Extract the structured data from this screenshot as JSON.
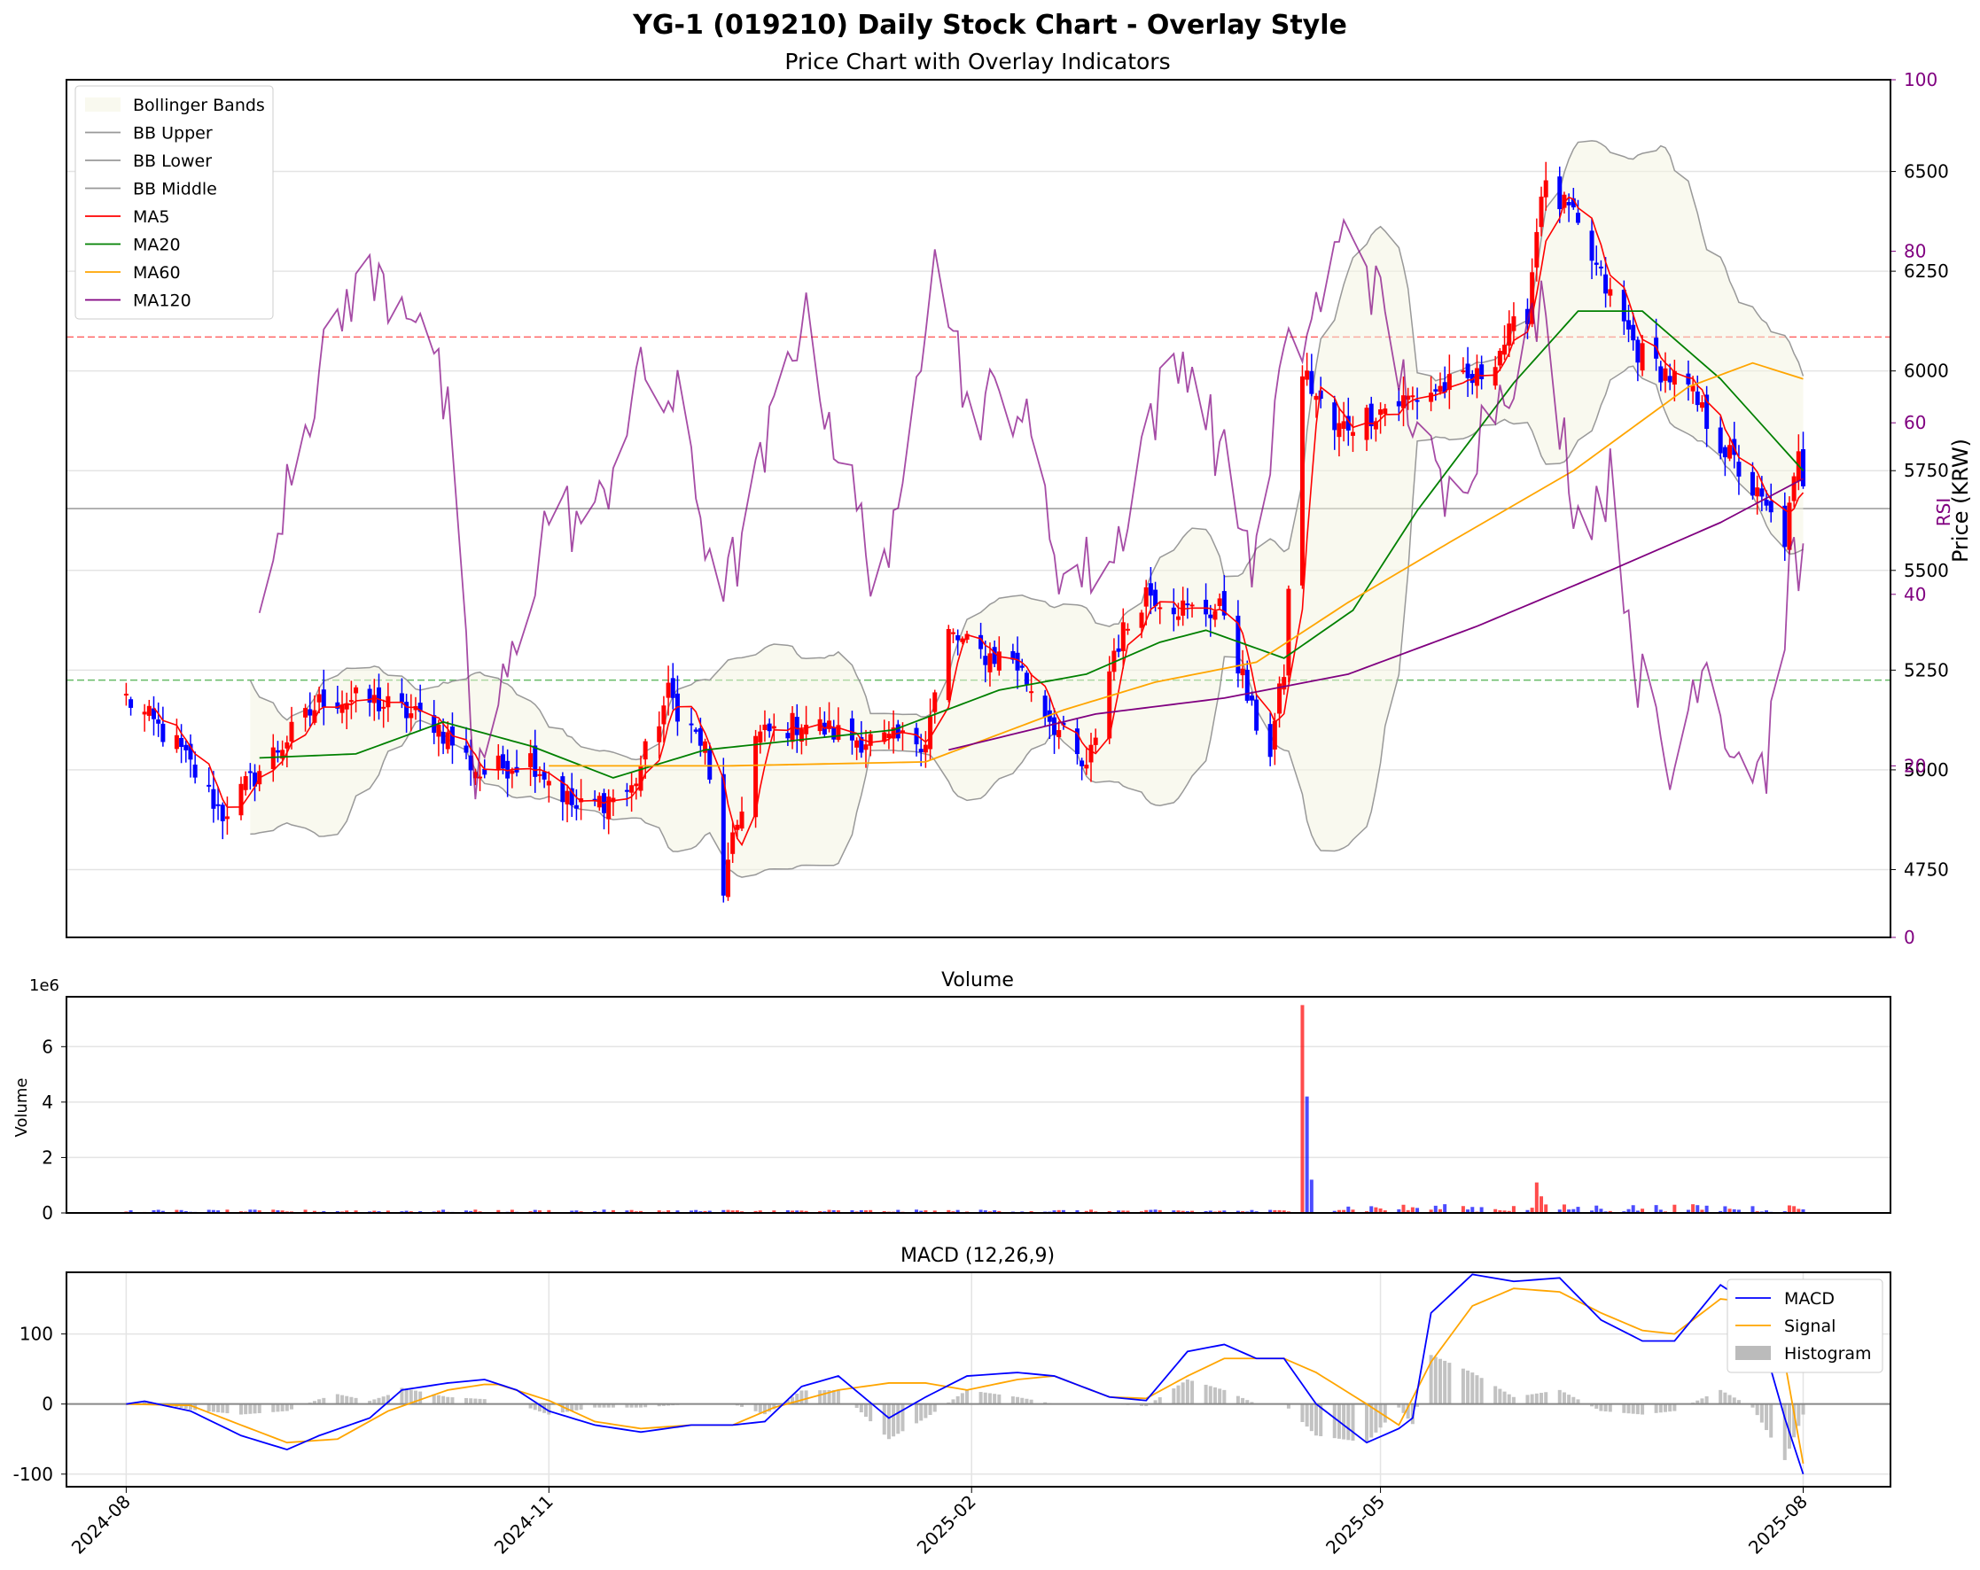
{
  "figure": {
    "title": "YG-1 (019210) Daily Stock Chart - Overlay Style",
    "subtitle": "Price Chart with Overlay Indicators"
  },
  "colors": {
    "up": "#ff0000",
    "down": "#0000ff",
    "ma5": "#ff0000",
    "ma20": "#008000",
    "ma60": "#ffa500",
    "ma120": "#800080",
    "bb": "#999999",
    "rsi": "#800080",
    "macd": "#0000ff",
    "signal": "#ffa500",
    "hist": "#bbbbbb",
    "rsi_overbought_line": "#ff6666",
    "rsi_oversold_line": "#66bb66"
  },
  "chart_data": [
    {
      "panel": "price",
      "type": "candlestick",
      "ylabel": "Price (KRW)",
      "ylim": [
        4580,
        6730
      ],
      "yticks": [
        4750,
        5000,
        5250,
        5500,
        5750,
        6000,
        6250,
        6500
      ],
      "xlim": [
        "2024-07-19",
        "2025-08-20"
      ],
      "legend": [
        "Bollinger Bands",
        "BB Upper",
        "BB Lower",
        "BB Middle",
        "MA5",
        "MA20",
        "MA60",
        "MA120"
      ],
      "legend_position": "top-left",
      "secondary_axis": {
        "label": "RSI",
        "ylim": [
          0,
          100
        ],
        "yticks": [
          0,
          20,
          40,
          60,
          80,
          100
        ],
        "ref_lines": [
          70,
          30,
          50
        ]
      },
      "anchors": [
        [
          "2024-08-01",
          5180
        ],
        [
          "2024-08-12",
          5060
        ],
        [
          "2024-08-22",
          4890
        ],
        [
          "2024-09-02",
          5040
        ],
        [
          "2024-09-13",
          5180
        ],
        [
          "2024-09-24",
          5170
        ],
        [
          "2024-10-07",
          5120
        ],
        [
          "2024-10-17",
          4990
        ],
        [
          "2024-10-28",
          5030
        ],
        [
          "2024-11-07",
          4900
        ],
        [
          "2024-11-19",
          4950
        ],
        [
          "2024-11-27",
          5190
        ],
        [
          "2024-12-05",
          5050
        ],
        [
          "2024-12-09",
          4700
        ],
        [
          "2024-12-16",
          5080
        ],
        [
          "2024-12-26",
          5120
        ],
        [
          "2025-01-06",
          5080
        ],
        [
          "2025-01-14",
          5070
        ],
        [
          "2025-01-22",
          5080
        ],
        [
          "2025-01-27",
          5340
        ],
        [
          "2025-02-03",
          5290
        ],
        [
          "2025-02-10",
          5280
        ],
        [
          "2025-02-17",
          5150
        ],
        [
          "2025-02-26",
          4990
        ],
        [
          "2025-03-04",
          5300
        ],
        [
          "2025-03-11",
          5450
        ],
        [
          "2025-03-20",
          5400
        ],
        [
          "2025-03-28",
          5400
        ],
        [
          "2025-04-03",
          5140
        ],
        [
          "2025-04-07",
          5050
        ],
        [
          "2025-04-10",
          5250
        ],
        [
          "2025-04-14",
          6000
        ],
        [
          "2025-04-21",
          5850
        ],
        [
          "2025-04-30",
          5900
        ],
        [
          "2025-05-12",
          5950
        ],
        [
          "2025-05-22",
          5980
        ],
        [
          "2025-06-02",
          6150
        ],
        [
          "2025-06-05",
          6460
        ],
        [
          "2025-06-11",
          6400
        ],
        [
          "2025-06-18",
          6230
        ],
        [
          "2025-06-26",
          6050
        ],
        [
          "2025-07-07",
          5950
        ],
        [
          "2025-07-14",
          5820
        ],
        [
          "2025-07-21",
          5700
        ],
        [
          "2025-07-28",
          5580
        ],
        [
          "2025-07-31",
          5780
        ],
        [
          "2025-08-01",
          5730
        ]
      ],
      "moving_average_anchors": {
        "MA20": [
          [
            "2024-08-30",
            5030
          ],
          [
            "2024-09-20",
            5040
          ],
          [
            "2024-10-09",
            5120
          ],
          [
            "2024-10-28",
            5060
          ],
          [
            "2024-11-15",
            4980
          ],
          [
            "2024-12-05",
            5050
          ],
          [
            "2025-01-15",
            5100
          ],
          [
            "2025-02-07",
            5200
          ],
          [
            "2025-02-26",
            5240
          ],
          [
            "2025-03-14",
            5320
          ],
          [
            "2025-03-24",
            5350
          ],
          [
            "2025-04-10",
            5280
          ],
          [
            "2025-04-25",
            5400
          ],
          [
            "2025-05-09",
            5650
          ],
          [
            "2025-05-30",
            5970
          ],
          [
            "2025-06-13",
            6150
          ],
          [
            "2025-06-27",
            6150
          ],
          [
            "2025-07-14",
            5980
          ],
          [
            "2025-08-01",
            5750
          ]
        ],
        "MA60": [
          [
            "2024-11-01",
            5010
          ],
          [
            "2024-12-10",
            5010
          ],
          [
            "2025-01-22",
            5020
          ],
          [
            "2025-02-21",
            5150
          ],
          [
            "2025-03-13",
            5220
          ],
          [
            "2025-04-04",
            5270
          ],
          [
            "2025-04-24",
            5420
          ],
          [
            "2025-05-16",
            5570
          ],
          [
            "2025-06-12",
            5750
          ],
          [
            "2025-07-07",
            5960
          ],
          [
            "2025-07-21",
            6020
          ],
          [
            "2025-08-01",
            5980
          ]
        ],
        "MA120": [
          [
            "2025-01-27",
            5050
          ],
          [
            "2025-02-28",
            5140
          ],
          [
            "2025-03-28",
            5180
          ],
          [
            "2025-04-24",
            5240
          ],
          [
            "2025-05-22",
            5360
          ],
          [
            "2025-06-20",
            5500
          ],
          [
            "2025-07-14",
            5620
          ],
          [
            "2025-08-01",
            5730
          ]
        ]
      },
      "rsi_anchors": [
        [
          "2024-08-30",
          34
        ],
        [
          "2024-09-05",
          55
        ],
        [
          "2024-09-20",
          77
        ],
        [
          "2024-10-04",
          74
        ],
        [
          "2024-10-10",
          60
        ],
        [
          "2024-10-16",
          18
        ],
        [
          "2024-10-24",
          32
        ],
        [
          "2024-11-01",
          50
        ],
        [
          "2024-11-11",
          48
        ],
        [
          "2024-11-20",
          65
        ],
        [
          "2024-11-29",
          62
        ],
        [
          "2024-12-05",
          47
        ],
        [
          "2024-12-10",
          41
        ],
        [
          "2024-12-17",
          54
        ],
        [
          "2024-12-26",
          73
        ],
        [
          "2025-01-03",
          57
        ],
        [
          "2025-01-10",
          44
        ],
        [
          "2025-01-16",
          46
        ],
        [
          "2025-01-24",
          84
        ],
        [
          "2025-01-31",
          62
        ],
        [
          "2025-02-11",
          63
        ],
        [
          "2025-02-21",
          42
        ],
        [
          "2025-03-04",
          44
        ],
        [
          "2025-03-11",
          60
        ],
        [
          "2025-03-20",
          68
        ],
        [
          "2025-03-28",
          55
        ],
        [
          "2025-04-04",
          43
        ],
        [
          "2025-04-09",
          65
        ],
        [
          "2025-04-16",
          72
        ],
        [
          "2025-04-25",
          84
        ],
        [
          "2025-05-05",
          66
        ],
        [
          "2025-05-15",
          50
        ],
        [
          "2025-05-26",
          63
        ],
        [
          "2025-06-05",
          73
        ],
        [
          "2025-06-13",
          49
        ],
        [
          "2025-06-20",
          53
        ],
        [
          "2025-06-26",
          31
        ],
        [
          "2025-07-03",
          18
        ],
        [
          "2025-07-10",
          34
        ],
        [
          "2025-07-17",
          22
        ],
        [
          "2025-07-24",
          20
        ],
        [
          "2025-07-29",
          42
        ],
        [
          "2025-08-01",
          43
        ]
      ]
    },
    {
      "panel": "volume",
      "type": "bar",
      "title": "Volume",
      "ylabel": "Volume",
      "offset_label": "1e6",
      "ylim": [
        0,
        7.8
      ],
      "yticks": [
        0,
        2,
        4,
        6
      ],
      "spikes": [
        {
          "date": "2025-04-14",
          "value": 7.5,
          "direction": "up"
        },
        {
          "date": "2025-04-15",
          "value": 4.2,
          "direction": "down"
        },
        {
          "date": "2025-04-16",
          "value": 1.2,
          "direction": "down"
        },
        {
          "date": "2025-06-04",
          "value": 1.1,
          "direction": "up"
        },
        {
          "date": "2025-06-05",
          "value": 0.6,
          "direction": "up"
        }
      ],
      "baseline_range": [
        0.02,
        0.35
      ]
    },
    {
      "panel": "macd",
      "type": "line",
      "title": "MACD (12,26,9)",
      "ylim": [
        -118,
        188
      ],
      "yticks": [
        -100,
        0,
        100
      ],
      "xticks": [
        "2024-08",
        "2024-11",
        "2025-02",
        "2025-05",
        "2025-08"
      ],
      "grid": true,
      "legend_position": "top-right",
      "series": [
        {
          "name": "MACD",
          "anchors": [
            [
              "2024-08-01",
              0
            ],
            [
              "2024-08-05",
              4
            ],
            [
              "2024-08-15",
              -10
            ],
            [
              "2024-08-26",
              -45
            ],
            [
              "2024-09-05",
              -65
            ],
            [
              "2024-09-12",
              -45
            ],
            [
              "2024-09-23",
              -20
            ],
            [
              "2024-09-30",
              20
            ],
            [
              "2024-10-10",
              30
            ],
            [
              "2024-10-18",
              35
            ],
            [
              "2024-10-25",
              20
            ],
            [
              "2024-11-01",
              -10
            ],
            [
              "2024-11-11",
              -30
            ],
            [
              "2024-11-21",
              -40
            ],
            [
              "2024-12-02",
              -30
            ],
            [
              "2024-12-11",
              -30
            ],
            [
              "2024-12-18",
              -25
            ],
            [
              "2024-12-26",
              25
            ],
            [
              "2025-01-03",
              40
            ],
            [
              "2025-01-14",
              -20
            ],
            [
              "2025-01-22",
              10
            ],
            [
              "2025-01-31",
              40
            ],
            [
              "2025-02-11",
              45
            ],
            [
              "2025-02-19",
              40
            ],
            [
              "2025-03-03",
              10
            ],
            [
              "2025-03-11",
              5
            ],
            [
              "2025-03-20",
              75
            ],
            [
              "2025-03-28",
              85
            ],
            [
              "2025-04-04",
              65
            ],
            [
              "2025-04-10",
              65
            ],
            [
              "2025-04-17",
              0
            ],
            [
              "2025-04-28",
              -55
            ],
            [
              "2025-05-05",
              -35
            ],
            [
              "2025-05-08",
              -20
            ],
            [
              "2025-05-12",
              130
            ],
            [
              "2025-05-21",
              185
            ],
            [
              "2025-05-30",
              175
            ],
            [
              "2025-06-09",
              180
            ],
            [
              "2025-06-18",
              120
            ],
            [
              "2025-06-27",
              90
            ],
            [
              "2025-07-04",
              90
            ],
            [
              "2025-07-14",
              170
            ],
            [
              "2025-07-21",
              140
            ],
            [
              "2025-07-28",
              -20
            ],
            [
              "2025-08-01",
              -100
            ]
          ]
        },
        {
          "name": "Signal",
          "anchors": [
            [
              "2024-08-01",
              0
            ],
            [
              "2024-08-15",
              -2
            ],
            [
              "2024-08-26",
              -30
            ],
            [
              "2024-09-05",
              -55
            ],
            [
              "2024-09-16",
              -50
            ],
            [
              "2024-09-27",
              -10
            ],
            [
              "2024-10-10",
              20
            ],
            [
              "2024-10-20",
              30
            ],
            [
              "2024-11-01",
              5
            ],
            [
              "2024-11-11",
              -25
            ],
            [
              "2024-11-21",
              -35
            ],
            [
              "2024-12-02",
              -30
            ],
            [
              "2024-12-11",
              -30
            ],
            [
              "2024-12-20",
              -5
            ],
            [
              "2025-01-03",
              20
            ],
            [
              "2025-01-14",
              30
            ],
            [
              "2025-01-22",
              30
            ],
            [
              "2025-01-31",
              20
            ],
            [
              "2025-02-11",
              35
            ],
            [
              "2025-02-19",
              40
            ],
            [
              "2025-03-03",
              10
            ],
            [
              "2025-03-11",
              8
            ],
            [
              "2025-03-20",
              40
            ],
            [
              "2025-03-28",
              65
            ],
            [
              "2025-04-10",
              65
            ],
            [
              "2025-04-17",
              45
            ],
            [
              "2025-04-28",
              0
            ],
            [
              "2025-05-05",
              -30
            ],
            [
              "2025-05-12",
              60
            ],
            [
              "2025-05-21",
              140
            ],
            [
              "2025-05-30",
              165
            ],
            [
              "2025-06-09",
              160
            ],
            [
              "2025-06-18",
              130
            ],
            [
              "2025-06-27",
              105
            ],
            [
              "2025-07-04",
              100
            ],
            [
              "2025-07-14",
              150
            ],
            [
              "2025-07-21",
              145
            ],
            [
              "2025-07-28",
              60
            ],
            [
              "2025-08-01",
              -85
            ]
          ]
        }
      ],
      "histogram_label": "Histogram"
    }
  ]
}
